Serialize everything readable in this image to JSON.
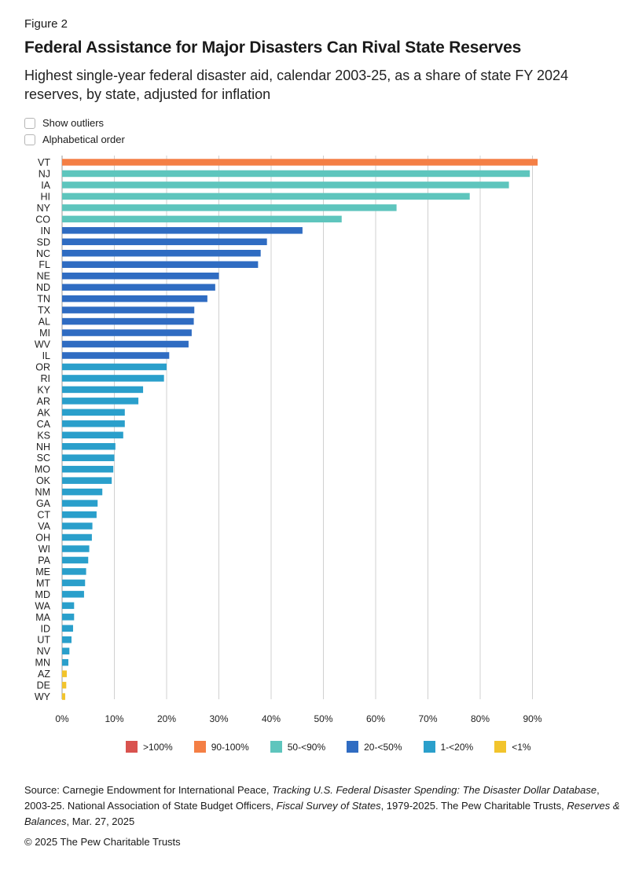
{
  "figure_label": "Figure 2",
  "title": "Federal Assistance for Major Disasters Can Rival State Reserves",
  "subtitle": "Highest single-year federal disaster aid, calendar 2003-25, as a share of state FY 2024 reserves, by state, adjusted for inflation",
  "options": {
    "show_outliers": "Show outliers",
    "alphabetical_order": "Alphabetical order"
  },
  "legend": [
    {
      "label": ">100%",
      "color": "#d9534f"
    },
    {
      "label": "90-100%",
      "color": "#f47f45"
    },
    {
      "label": "50-<90%",
      "color": "#5ec5bd"
    },
    {
      "label": "20-<50%",
      "color": "#2f6cc2"
    },
    {
      "label": "1-<20%",
      "color": "#2a9fcb"
    },
    {
      "label": "<1%",
      "color": "#f2c42c"
    }
  ],
  "source": {
    "part1": "Source: Carnegie Endowment for International Peace, ",
    "italic1": "Tracking U.S. Federal Disaster Spending: The Disaster Dollar Database",
    "part2": ", 2003-25. National Association of State Budget Officers, ",
    "italic2": "Fiscal Survey of States",
    "part3": ", 1979-2025. The Pew Charitable Trusts, ",
    "italic3": "Reserves & Balances",
    "part4": ", Mar. 27, 2025"
  },
  "copyright": "© 2025 The Pew Charitable Trusts",
  "chart_data": {
    "type": "bar",
    "orientation": "horizontal",
    "xlim": [
      0,
      90
    ],
    "x_ticks": [
      0,
      10,
      20,
      30,
      40,
      50,
      60,
      70,
      80,
      90
    ],
    "x_tick_labels": [
      "0%",
      "10%",
      "20%",
      "30%",
      "40%",
      "50%",
      "60%",
      "70%",
      "80%",
      "90%"
    ],
    "grid": true,
    "categories": [
      "VT",
      "NJ",
      "IA",
      "HI",
      "NY",
      "CO",
      "IN",
      "SD",
      "NC",
      "FL",
      "NE",
      "ND",
      "TN",
      "TX",
      "AL",
      "MI",
      "WV",
      "IL",
      "OR",
      "RI",
      "KY",
      "AR",
      "AK",
      "CA",
      "KS",
      "NH",
      "SC",
      "MO",
      "OK",
      "NM",
      "GA",
      "CT",
      "VA",
      "OH",
      "WI",
      "PA",
      "ME",
      "MT",
      "MD",
      "WA",
      "MA",
      "ID",
      "UT",
      "NV",
      "MN",
      "AZ",
      "DE",
      "WY"
    ],
    "values": [
      91,
      89.5,
      85.5,
      78,
      64,
      53.5,
      46,
      39.2,
      38,
      37.5,
      30,
      29.3,
      27.8,
      25.3,
      25.2,
      24.8,
      24.2,
      20.5,
      20,
      19.5,
      15.5,
      14.6,
      12,
      12,
      11.7,
      10.2,
      10,
      9.8,
      9.5,
      7.7,
      6.8,
      6.6,
      5.8,
      5.7,
      5.2,
      5,
      4.6,
      4.4,
      4.2,
      2.3,
      2.3,
      2.1,
      1.8,
      1.4,
      1.2,
      0.9,
      0.8,
      0.6
    ],
    "groups": [
      "90-100%",
      "50-<90%",
      "50-<90%",
      "50-<90%",
      "50-<90%",
      "50-<90%",
      "20-<50%",
      "20-<50%",
      "20-<50%",
      "20-<50%",
      "20-<50%",
      "20-<50%",
      "20-<50%",
      "20-<50%",
      "20-<50%",
      "20-<50%",
      "20-<50%",
      "20-<50%",
      "1-<20%",
      "1-<20%",
      "1-<20%",
      "1-<20%",
      "1-<20%",
      "1-<20%",
      "1-<20%",
      "1-<20%",
      "1-<20%",
      "1-<20%",
      "1-<20%",
      "1-<20%",
      "1-<20%",
      "1-<20%",
      "1-<20%",
      "1-<20%",
      "1-<20%",
      "1-<20%",
      "1-<20%",
      "1-<20%",
      "1-<20%",
      "1-<20%",
      "1-<20%",
      "1-<20%",
      "1-<20%",
      "1-<20%",
      "1-<20%",
      "<1%",
      "<1%",
      "<1%"
    ]
  }
}
